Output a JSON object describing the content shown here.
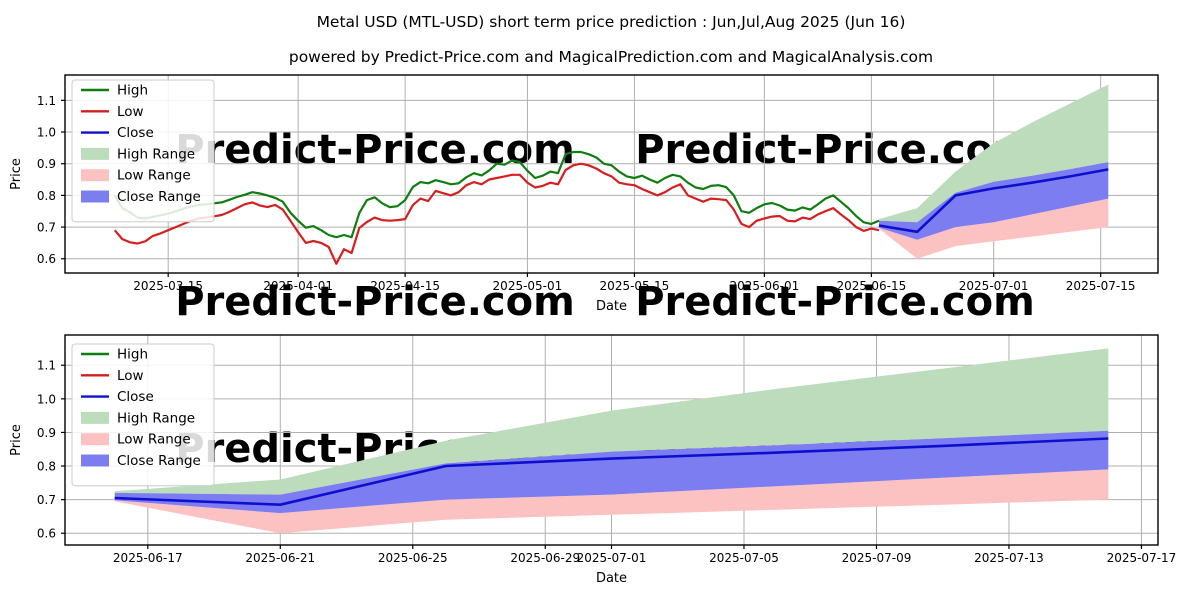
{
  "page": {
    "title": "Metal USD (MTL-USD) short term price prediction : Jun,Jul,Aug 2025 (Jun 16)",
    "subtitle": "powered by Predict-Price.com and MagicalPrediction.com and MagicalAnalysis.com"
  },
  "watermark": {
    "text": "Predict-Price.com",
    "color": "#e8e8e8"
  },
  "colors": {
    "high_line": "#0f7d0f",
    "low_line": "#d42020",
    "close_line": "#0e0ecf",
    "high_range_fill": "#bcdcbc",
    "low_range_fill": "#fcc2c2",
    "close_range_fill": "#7d7df2",
    "grid": "#b0b0b0",
    "spine": "#000000"
  },
  "legend_items": [
    {
      "label": "High",
      "swatch": "line",
      "color": "#0f7d0f"
    },
    {
      "label": "Low",
      "swatch": "line",
      "color": "#d42020"
    },
    {
      "label": "Close",
      "swatch": "line",
      "color": "#0e0ecf"
    },
    {
      "label": "High Range",
      "swatch": "patch",
      "color": "#bcdcbc"
    },
    {
      "label": "Low Range",
      "swatch": "patch",
      "color": "#fcc2c2"
    },
    {
      "label": "Close Range",
      "swatch": "patch",
      "color": "#7d7df2"
    }
  ],
  "chart_data": [
    {
      "type": "line",
      "name": "history-and-prediction",
      "xlabel": "Date",
      "ylabel": "Price",
      "grid": true,
      "legend_position": "upper-left",
      "ylim": [
        0.555,
        1.18
      ],
      "yticks": [
        "0.6",
        "0.7",
        "0.8",
        "0.9",
        "1.0",
        "1.1"
      ],
      "xlim_days": [
        -6.5,
        136.5
      ],
      "xticks": [
        {
          "label": "2025-03-15",
          "day": 7
        },
        {
          "label": "2025-04-01",
          "day": 24
        },
        {
          "label": "2025-04-15",
          "day": 38
        },
        {
          "label": "2025-05-01",
          "day": 54
        },
        {
          "label": "2025-05-15",
          "day": 68
        },
        {
          "label": "2025-06-01",
          "day": 85
        },
        {
          "label": "2025-06-15",
          "day": 99
        },
        {
          "label": "2025-07-01",
          "day": 115
        },
        {
          "label": "2025-07-15",
          "day": 129
        }
      ],
      "history_start_date": "2025-03-08",
      "history": {
        "high": [
          0.8,
          0.76,
          0.747,
          0.73,
          0.727,
          0.732,
          0.737,
          0.742,
          0.75,
          0.758,
          0.765,
          0.77,
          0.772,
          0.775,
          0.778,
          0.786,
          0.795,
          0.802,
          0.81,
          0.806,
          0.8,
          0.792,
          0.78,
          0.745,
          0.72,
          0.698,
          0.703,
          0.69,
          0.675,
          0.668,
          0.675,
          0.668,
          0.744,
          0.785,
          0.794,
          0.775,
          0.763,
          0.766,
          0.785,
          0.826,
          0.842,
          0.838,
          0.848,
          0.842,
          0.835,
          0.838,
          0.857,
          0.87,
          0.863,
          0.879,
          0.9,
          0.897,
          0.91,
          0.905,
          0.878,
          0.855,
          0.862,
          0.875,
          0.87,
          0.93,
          0.937,
          0.937,
          0.93,
          0.92,
          0.9,
          0.895,
          0.875,
          0.86,
          0.855,
          0.862,
          0.85,
          0.84,
          0.855,
          0.865,
          0.86,
          0.84,
          0.825,
          0.82,
          0.83,
          0.832,
          0.826,
          0.8,
          0.75,
          0.745,
          0.76,
          0.772,
          0.776,
          0.768,
          0.755,
          0.752,
          0.762,
          0.755,
          0.772,
          0.79,
          0.8,
          0.78,
          0.76,
          0.735,
          0.715,
          0.71,
          0.72
        ],
        "low": [
          0.69,
          0.662,
          0.652,
          0.648,
          0.655,
          0.672,
          0.68,
          0.69,
          0.7,
          0.71,
          0.72,
          0.727,
          0.73,
          0.734,
          0.738,
          0.748,
          0.76,
          0.772,
          0.778,
          0.768,
          0.763,
          0.77,
          0.755,
          0.72,
          0.684,
          0.65,
          0.656,
          0.65,
          0.637,
          0.584,
          0.63,
          0.618,
          0.697,
          0.716,
          0.73,
          0.722,
          0.72,
          0.722,
          0.725,
          0.769,
          0.79,
          0.782,
          0.814,
          0.807,
          0.8,
          0.81,
          0.832,
          0.842,
          0.835,
          0.85,
          0.855,
          0.86,
          0.865,
          0.865,
          0.84,
          0.825,
          0.83,
          0.84,
          0.835,
          0.88,
          0.895,
          0.9,
          0.895,
          0.885,
          0.87,
          0.86,
          0.84,
          0.835,
          0.832,
          0.82,
          0.81,
          0.8,
          0.81,
          0.825,
          0.835,
          0.8,
          0.79,
          0.78,
          0.79,
          0.788,
          0.785,
          0.755,
          0.71,
          0.7,
          0.72,
          0.727,
          0.733,
          0.735,
          0.72,
          0.718,
          0.73,
          0.725,
          0.74,
          0.75,
          0.76,
          0.74,
          0.722,
          0.7,
          0.688,
          0.695,
          0.69
        ]
      },
      "prediction_start_date": "2025-06-16",
      "prediction_day_offset": 100,
      "prediction": {
        "days": [
          0,
          5,
          10,
          15,
          20,
          25,
          30
        ],
        "close": [
          0.705,
          0.685,
          0.8,
          0.822,
          0.84,
          0.86,
          0.882
        ],
        "close_high": [
          0.72,
          0.715,
          0.808,
          0.843,
          0.862,
          0.883,
          0.905
        ],
        "close_low": [
          0.698,
          0.66,
          0.7,
          0.715,
          0.74,
          0.765,
          0.79
        ],
        "high_high": [
          0.725,
          0.76,
          0.875,
          0.965,
          1.03,
          1.09,
          1.15
        ],
        "low_low": [
          0.695,
          0.6,
          0.64,
          0.655,
          0.67,
          0.685,
          0.7
        ]
      }
    },
    {
      "type": "line",
      "name": "prediction-zoom",
      "xlabel": "Date",
      "ylabel": "Price",
      "grid": true,
      "legend_position": "upper-left",
      "ylim": [
        0.565,
        1.19
      ],
      "yticks": [
        "0.6",
        "0.7",
        "0.8",
        "0.9",
        "1.0",
        "1.1"
      ],
      "xlim_days": [
        -1.5,
        31.5
      ],
      "xticks": [
        {
          "label": "2025-06-17",
          "day": 1
        },
        {
          "label": "2025-06-21",
          "day": 5
        },
        {
          "label": "2025-06-25",
          "day": 9
        },
        {
          "label": "2025-06-29",
          "day": 13
        },
        {
          "label": "2025-07-01",
          "day": 15
        },
        {
          "label": "2025-07-05",
          "day": 19
        },
        {
          "label": "2025-07-09",
          "day": 23
        },
        {
          "label": "2025-07-13",
          "day": 27
        },
        {
          "label": "2025-07-17",
          "day": 31
        }
      ],
      "prediction_start_date": "2025-06-16",
      "prediction_day_offset": 0,
      "prediction": {
        "days": [
          0,
          5,
          10,
          15,
          20,
          25,
          30
        ],
        "close": [
          0.705,
          0.685,
          0.8,
          0.822,
          0.84,
          0.86,
          0.882
        ],
        "close_high": [
          0.72,
          0.715,
          0.808,
          0.843,
          0.862,
          0.883,
          0.905
        ],
        "close_low": [
          0.698,
          0.66,
          0.7,
          0.715,
          0.74,
          0.765,
          0.79
        ],
        "high_high": [
          0.725,
          0.76,
          0.875,
          0.965,
          1.03,
          1.09,
          1.15
        ],
        "low_low": [
          0.695,
          0.6,
          0.64,
          0.655,
          0.67,
          0.685,
          0.7
        ]
      }
    }
  ]
}
